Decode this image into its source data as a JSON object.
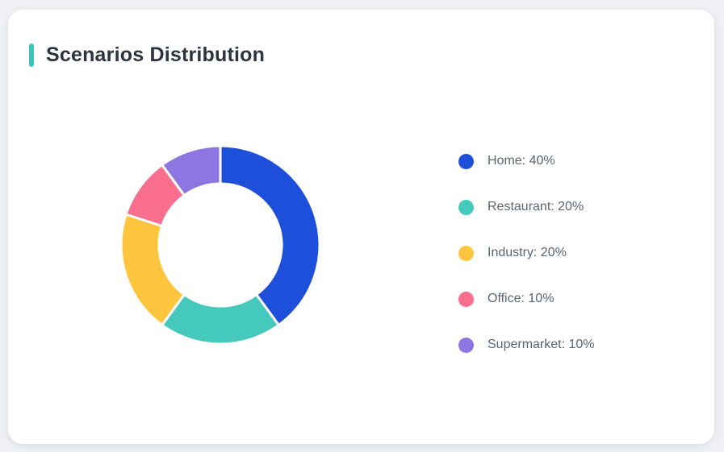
{
  "card": {
    "title": "Scenarios Distribution"
  },
  "chart_data": {
    "type": "pie",
    "subtype": "donut",
    "title": "Scenarios Distribution",
    "categories": [
      "Home",
      "Restaurant",
      "Industry",
      "Office",
      "Supermarket"
    ],
    "values": [
      40,
      20,
      20,
      10,
      10
    ],
    "unit": "%",
    "series_colors": [
      "#1E4FDB",
      "#45C9BC",
      "#FFC53F",
      "#F96D8F",
      "#8D75E2"
    ],
    "legend_labels": [
      "Home: 40%",
      "Restaurant: 20%",
      "Industry: 20%",
      "Office: 10%",
      "Supermarket: 10%"
    ],
    "legend_position": "right",
    "start_angle_deg": 0,
    "direction": "clockwise",
    "inner_radius_ratio": 0.62,
    "slice_border_color": "#FFFFFF",
    "slice_border_width": 3
  },
  "colors": {
    "page_bg": "#EFF1F4",
    "card_bg": "#FFFFFF",
    "accent_bar": "#3EC4B9",
    "title_text": "#2B3440",
    "legend_text": "#5A6472"
  }
}
